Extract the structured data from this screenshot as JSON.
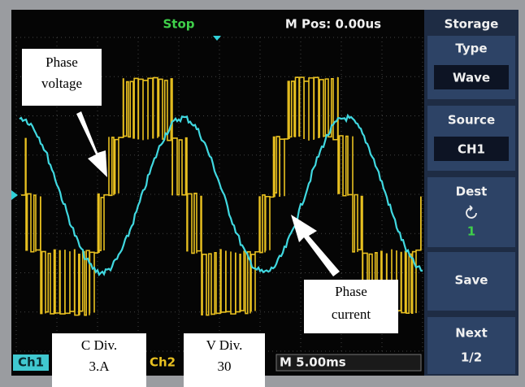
{
  "top_bar": {
    "status": "Stop",
    "position": "M Pos: 0.00us"
  },
  "menu": {
    "title": "Storage",
    "items": [
      {
        "label": "Type",
        "value": "Wave"
      },
      {
        "label": "Source",
        "value": "CH1"
      },
      {
        "label": "Dest",
        "value": "1"
      },
      {
        "label": "Save"
      },
      {
        "label": "Next",
        "value": "1/2"
      }
    ]
  },
  "bottom_bar": {
    "ch1": "Ch1",
    "ch2": "Ch2",
    "timebase": "M 5.00ms"
  },
  "annotations": {
    "voltage": [
      "Phase",
      "voltage"
    ],
    "current": [
      "Phase",
      "current"
    ],
    "current_div": [
      "C  Div.",
      "3.A"
    ],
    "voltage_div": [
      "V Div.",
      "30"
    ]
  }
}
